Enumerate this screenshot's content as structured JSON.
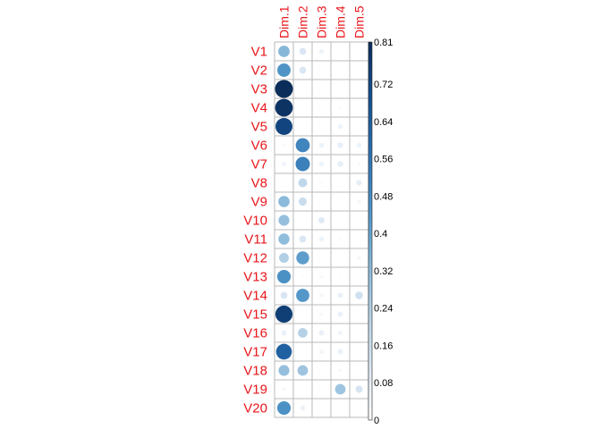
{
  "chart_data": {
    "type": "heatmap",
    "glyph": "circle",
    "title": "",
    "columns": [
      "Dim.1",
      "Dim.2",
      "Dim.3",
      "Dim.4",
      "Dim.5"
    ],
    "rows": [
      "V1",
      "V2",
      "V3",
      "V4",
      "V5",
      "V6",
      "V7",
      "V8",
      "V9",
      "V10",
      "V11",
      "V12",
      "V13",
      "V14",
      "V15",
      "V16",
      "V17",
      "V18",
      "V19",
      "V20"
    ],
    "values": [
      [
        0.33,
        0.12,
        0.06,
        0.01,
        0.0
      ],
      [
        0.45,
        0.12,
        0.01,
        0.01,
        0.0
      ],
      [
        0.81,
        0.0,
        0.01,
        0.0,
        0.0
      ],
      [
        0.79,
        0.0,
        0.01,
        0.02,
        0.01
      ],
      [
        0.73,
        0.0,
        0.0,
        0.06,
        0.0
      ],
      [
        0.03,
        0.5,
        0.06,
        0.08,
        0.06
      ],
      [
        0.05,
        0.52,
        0.06,
        0.08,
        0.03
      ],
      [
        0.0,
        0.2,
        0.02,
        0.0,
        0.08
      ],
      [
        0.32,
        0.17,
        0.0,
        0.01,
        0.04
      ],
      [
        0.3,
        0.01,
        0.1,
        0.0,
        0.0
      ],
      [
        0.31,
        0.12,
        0.06,
        0.02,
        0.0
      ],
      [
        0.24,
        0.42,
        0.0,
        0.0,
        0.04
      ],
      [
        0.46,
        0.02,
        0.03,
        0.02,
        0.0
      ],
      [
        0.12,
        0.44,
        0.04,
        0.07,
        0.15
      ],
      [
        0.75,
        0.0,
        0.03,
        0.07,
        0.0
      ],
      [
        0.07,
        0.23,
        0.07,
        0.05,
        0.0
      ],
      [
        0.63,
        0.0,
        0.05,
        0.07,
        0.0
      ],
      [
        0.3,
        0.28,
        0.0,
        0.03,
        0.0
      ],
      [
        0.03,
        0.0,
        0.01,
        0.28,
        0.13
      ],
      [
        0.46,
        0.06,
        0.0,
        0.01,
        0.0
      ]
    ],
    "legend": {
      "position": "right",
      "min": 0,
      "max": 0.81,
      "tick_labels": [
        "0.81",
        "0.72",
        "0.64",
        "0.56",
        "0.48",
        "0.4",
        "0.32",
        "0.24",
        "0.16",
        "0.08",
        "0"
      ],
      "tick_values": [
        0.81,
        0.72,
        0.64,
        0.56,
        0.48,
        0.4,
        0.32,
        0.24,
        0.16,
        0.08,
        0
      ]
    },
    "colors": {
      "label": "#e8161b",
      "grid": "#b8b8b8",
      "scale": [
        "#ffffff",
        "#dbe7f3",
        "#b4d1e6",
        "#7fb3d6",
        "#4a90c4",
        "#2c6fb0",
        "#154f8f",
        "#0b2d5a"
      ]
    }
  }
}
